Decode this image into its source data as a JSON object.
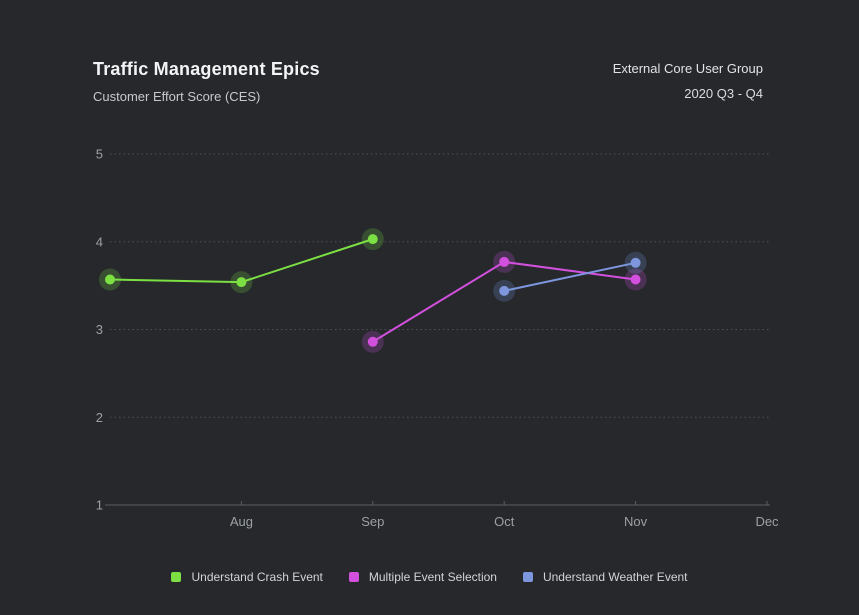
{
  "chart_data": {
    "type": "line",
    "title": "Traffic Management Epics",
    "subtitle": "Customer Effort Score (CES)",
    "context_line1": "External Core User Group",
    "context_line2": "2020 Q3 - Q4",
    "xlabel": "",
    "ylabel": "",
    "ylim": [
      1,
      5
    ],
    "y_ticks": [
      1,
      2,
      3,
      4,
      5
    ],
    "x_range": [
      0,
      5
    ],
    "x_tick_positions": [
      1,
      2,
      3,
      4,
      5
    ],
    "x_tick_labels": [
      "Aug",
      "Sep",
      "Oct",
      "Nov",
      "Dec"
    ],
    "grid": "horizontal-dotted",
    "legend_position": "bottom",
    "series": [
      {
        "name": "Understand Crash Event",
        "color": "#7ce043",
        "x": [
          0,
          1,
          2
        ],
        "y": [
          3.57,
          3.54,
          4.03
        ]
      },
      {
        "name": "Multiple Event Selection",
        "color": "#d250dd",
        "x": [
          2,
          3,
          4
        ],
        "y": [
          2.86,
          3.77,
          3.57
        ]
      },
      {
        "name": "Understand Weather Event",
        "color": "#7d96dd",
        "x": [
          3,
          4
        ],
        "y": [
          3.44,
          3.76
        ]
      }
    ]
  },
  "colors": {
    "background": "#26282c",
    "title": "#f3f4f5",
    "subtitle": "#c7c9cc",
    "context_text": "#e2e3e5",
    "tick_label": "#9ca0a4",
    "grid": "#4c4f54",
    "axis": "#5b5e62",
    "legend_label": "#d2d4d6",
    "point_halo_opacity": 0.22
  }
}
